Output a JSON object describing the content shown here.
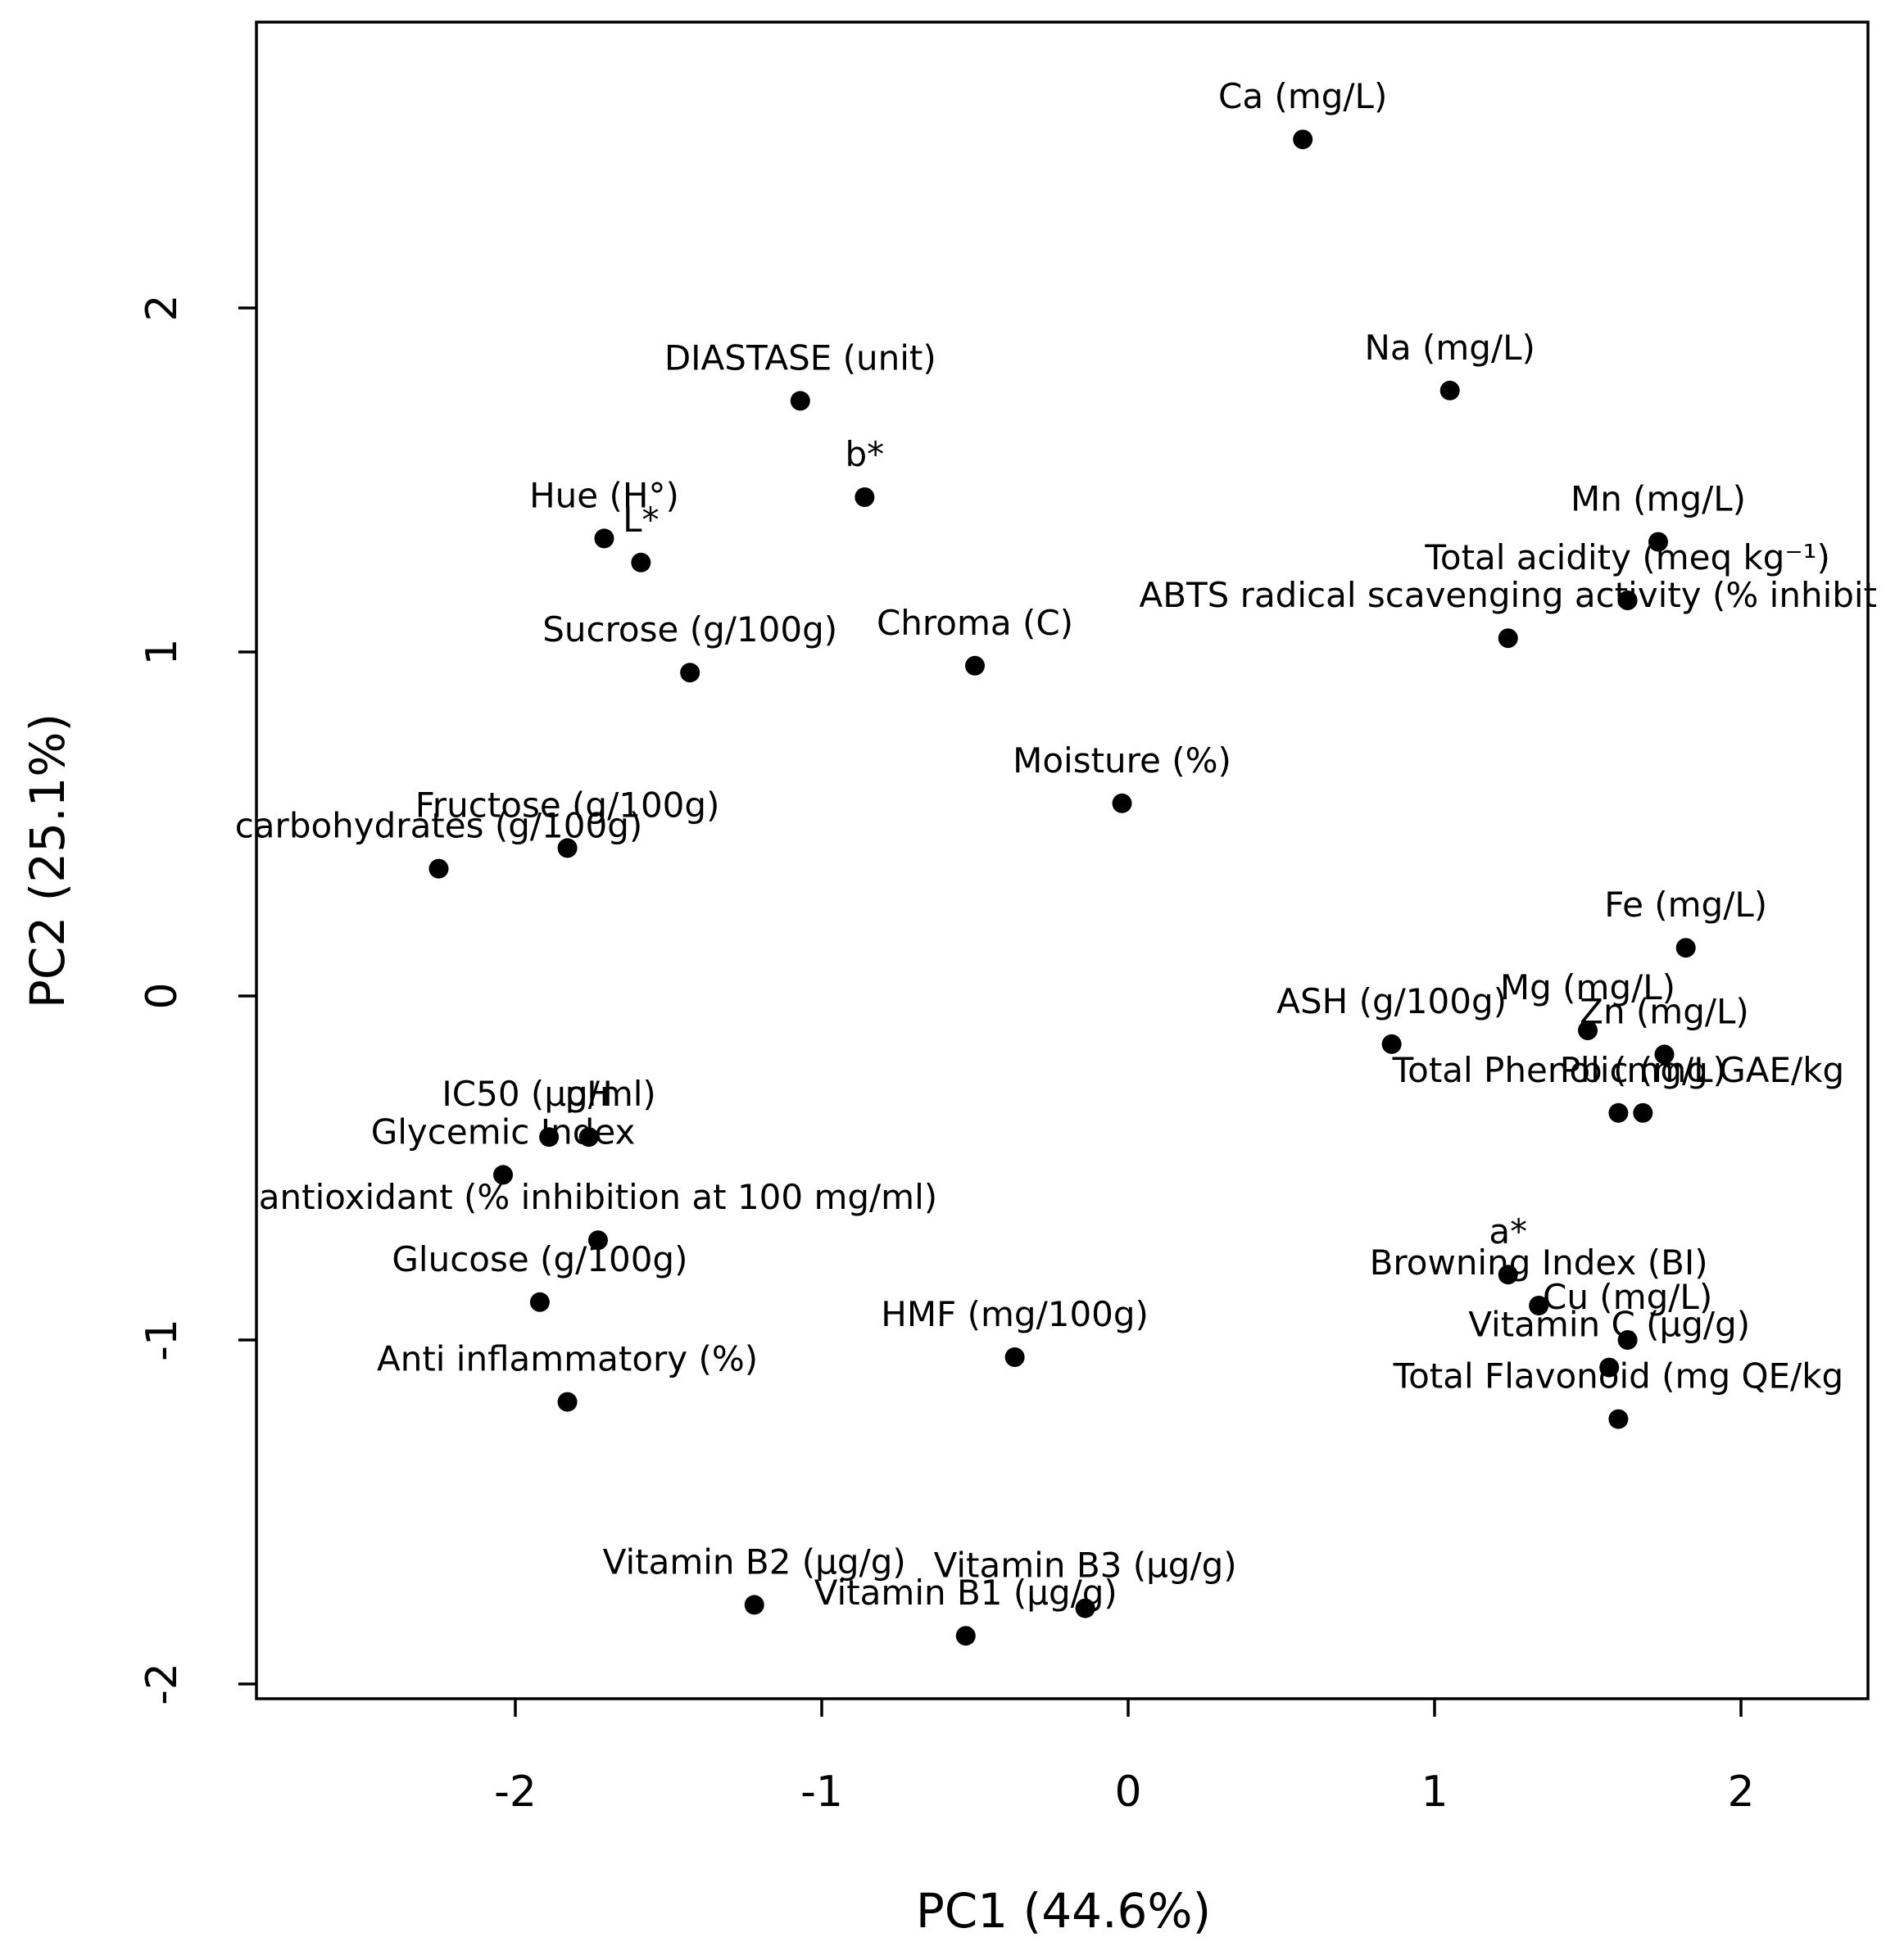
{
  "chart_data": {
    "type": "scatter",
    "xlabel": "PC1 (44.6%)",
    "ylabel": "PC2 (25.1%)",
    "xlim": [
      -2.8,
      2.45
    ],
    "ylim": [
      -2.05,
      2.83
    ],
    "x_ticks": [
      -2,
      -1,
      0,
      1,
      2
    ],
    "x_tick_labels": [
      "-2",
      "-1",
      "0",
      "1",
      "2"
    ],
    "y_ticks": [
      -2,
      -1,
      0,
      1,
      2
    ],
    "y_tick_labels": [
      "-2",
      "-1",
      "0",
      "1",
      "2"
    ],
    "points": [
      {
        "label": "Ca (mg/L)",
        "x": 0.57,
        "y": 2.49
      },
      {
        "label": "Na (mg/L)",
        "x": 1.05,
        "y": 1.76
      },
      {
        "label": "DIASTASE (unit)",
        "x": -1.07,
        "y": 1.73
      },
      {
        "label": "b*",
        "x": -0.86,
        "y": 1.45
      },
      {
        "label": "Hue (H°)",
        "x": -1.71,
        "y": 1.33
      },
      {
        "label": "L*",
        "x": -1.59,
        "y": 1.26
      },
      {
        "label": "Mn (mg/L)",
        "x": 1.73,
        "y": 1.32
      },
      {
        "label": "Total acidity (meq kg⁻¹)",
        "x": 1.63,
        "y": 1.15
      },
      {
        "label": "ABTS radical scavenging activity (% inhibit",
        "x": 1.24,
        "y": 1.04
      },
      {
        "label": "Sucrose (g/100g)",
        "x": -1.43,
        "y": 0.94
      },
      {
        "label": "Chroma (C)",
        "x": -0.5,
        "y": 0.96
      },
      {
        "label": "Moisture (%)",
        "x": -0.02,
        "y": 0.56
      },
      {
        "label": "Fructose (g/100g)",
        "x": -1.83,
        "y": 0.43
      },
      {
        "label": "carbohydrates (g/100g)",
        "x": -2.25,
        "y": 0.37
      },
      {
        "label": "Fe (mg/L)",
        "x": 1.82,
        "y": 0.14
      },
      {
        "label": "ASH (g/100g)",
        "x": 0.86,
        "y": -0.14
      },
      {
        "label": "Mg (mg/L)",
        "x": 1.5,
        "y": -0.1
      },
      {
        "label": "Zn (mg/L)",
        "x": 1.75,
        "y": -0.17
      },
      {
        "label": "Total Phenolic (mg GAE/kg",
        "x": 1.6,
        "y": -0.34
      },
      {
        "label": "Pb (mg/L)",
        "x": 1.68,
        "y": -0.34
      },
      {
        "label": "IC50 (μg/ml)",
        "x": -1.89,
        "y": -0.41
      },
      {
        "label": "pH",
        "x": -1.76,
        "y": -0.41
      },
      {
        "label": "Glycemic Index",
        "x": -2.04,
        "y": -0.52
      },
      {
        "label": "antioxidant (% inhibition at 100 mg/ml)",
        "x": -1.73,
        "y": -0.71
      },
      {
        "label": "Glucose (g/100g)",
        "x": -1.92,
        "y": -0.89
      },
      {
        "label": "a*",
        "x": 1.24,
        "y": -0.81
      },
      {
        "label": "Browning Index (BI)",
        "x": 1.34,
        "y": -0.9
      },
      {
        "label": "Cu (mg/L)",
        "x": 1.63,
        "y": -1.0
      },
      {
        "label": "Vitamin C (μg/g)",
        "x": 1.57,
        "y": -1.08
      },
      {
        "label": "Total Flavonoid (mg QE/kg",
        "x": 1.6,
        "y": -1.23
      },
      {
        "label": "HMF (mg/100g)",
        "x": -0.37,
        "y": -1.05
      },
      {
        "label": "Anti inflammatory (%)",
        "x": -1.83,
        "y": -1.18
      },
      {
        "label": "Vitamin B2 (μg/g)",
        "x": -1.22,
        "y": -1.77
      },
      {
        "label": "Vitamin B3 (μg/g)",
        "x": -0.14,
        "y": -1.78
      },
      {
        "label": "Vitamin B1 (μg/g)",
        "x": -0.53,
        "y": -1.86
      }
    ]
  }
}
